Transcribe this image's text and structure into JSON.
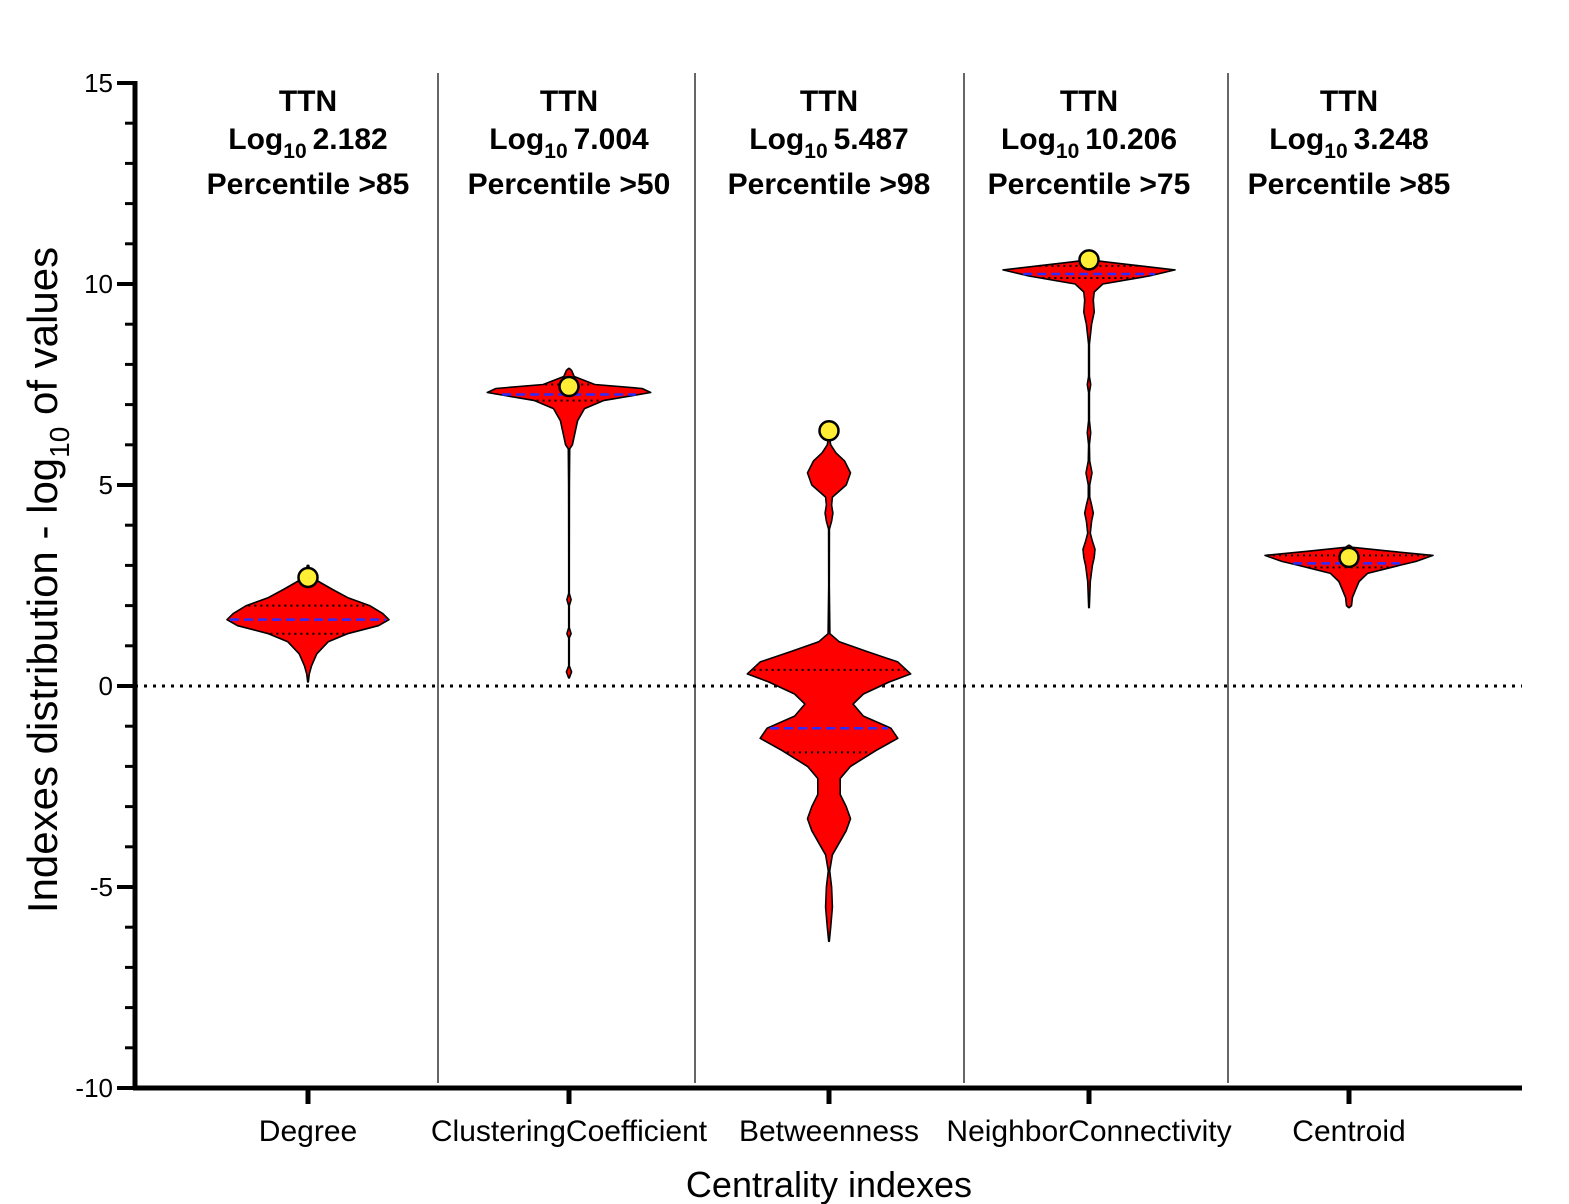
{
  "chart_data": {
    "type": "violin",
    "title": "",
    "xlabel": "Centrality indexes",
    "ylabel": {
      "prefix": "Indexes distribution - log",
      "subscript": "10",
      "suffix": " of values"
    },
    "ylim": [
      -10,
      15
    ],
    "yticks": [
      15,
      10,
      5,
      0,
      -5,
      -10
    ],
    "ytick_labels": [
      "15",
      "10",
      "5",
      "0",
      "-5",
      "-10"
    ],
    "reference_line": 0,
    "colors": {
      "violin": "#ff0000",
      "median": "#2c2cff",
      "highlight": "#ffee33",
      "outline": "#000000"
    },
    "categories": [
      "Degree",
      "ClusteringCoefficient",
      "Betweenness",
      "NeighborConnectivity",
      "Centroid"
    ],
    "series": [
      {
        "name": "Degree",
        "gene": "TTN",
        "log_prefix": "Log",
        "log_sub": "10",
        "log_value": "2.182",
        "percentile_label": "Percentile >85",
        "highlight": 2.7,
        "median": 1.65,
        "quartiles": [
          1.3,
          2.0
        ],
        "profile": [
          [
            0.1,
            0.003
          ],
          [
            0.3,
            0.015
          ],
          [
            0.5,
            0.04
          ],
          [
            0.8,
            0.1
          ],
          [
            1.1,
            0.23
          ],
          [
            1.3,
            0.45
          ],
          [
            1.5,
            0.8
          ],
          [
            1.65,
            0.92
          ],
          [
            1.8,
            0.85
          ],
          [
            2.0,
            0.7
          ],
          [
            2.2,
            0.45
          ],
          [
            2.4,
            0.28
          ],
          [
            2.6,
            0.12
          ],
          [
            2.8,
            0.03
          ],
          [
            3.0,
            0.008
          ]
        ]
      },
      {
        "name": "ClusteringCoefficient",
        "gene": "TTN",
        "log_prefix": "Log",
        "log_sub": "10",
        "log_value": "7.004",
        "percentile_label": "Percentile >50",
        "highlight": 7.45,
        "median": 7.25,
        "quartiles": [
          7.1,
          7.5
        ],
        "profile": [
          [
            0.2,
            0.004
          ],
          [
            0.35,
            0.03
          ],
          [
            0.5,
            0.004
          ],
          [
            1.2,
            0.004
          ],
          [
            1.3,
            0.025
          ],
          [
            1.45,
            0.004
          ],
          [
            2.0,
            0.004
          ],
          [
            2.15,
            0.025
          ],
          [
            2.3,
            0.004
          ],
          [
            3.2,
            0.004
          ],
          [
            5.0,
            0.005
          ],
          [
            5.9,
            0.008
          ],
          [
            6.0,
            0.04
          ],
          [
            6.3,
            0.07
          ],
          [
            6.6,
            0.1
          ],
          [
            6.9,
            0.18
          ],
          [
            7.1,
            0.4
          ],
          [
            7.3,
            0.95
          ],
          [
            7.4,
            0.85
          ],
          [
            7.5,
            0.3
          ],
          [
            7.7,
            0.06
          ],
          [
            7.85,
            0.03
          ],
          [
            7.9,
            0.003
          ]
        ]
      },
      {
        "name": "Betweenness",
        "gene": "TTN",
        "log_prefix": "Log",
        "log_sub": "10",
        "log_value": "5.487",
        "percentile_label": "Percentile >98",
        "highlight": 6.35,
        "median": -1.05,
        "quartiles": [
          -1.65,
          0.4
        ],
        "profile": [
          [
            -6.35,
            0.004
          ],
          [
            -6.0,
            0.02
          ],
          [
            -5.5,
            0.04
          ],
          [
            -5.0,
            0.03
          ],
          [
            -4.6,
            0.008
          ],
          [
            -4.2,
            0.04
          ],
          [
            -3.9,
            0.12
          ],
          [
            -3.6,
            0.2
          ],
          [
            -3.3,
            0.25
          ],
          [
            -3.0,
            0.2
          ],
          [
            -2.7,
            0.13
          ],
          [
            -2.3,
            0.13
          ],
          [
            -2.0,
            0.25
          ],
          [
            -1.6,
            0.55
          ],
          [
            -1.3,
            0.8
          ],
          [
            -1.05,
            0.72
          ],
          [
            -0.75,
            0.4
          ],
          [
            -0.45,
            0.28
          ],
          [
            -0.2,
            0.4
          ],
          [
            0.1,
            0.7
          ],
          [
            0.3,
            0.95
          ],
          [
            0.6,
            0.8
          ],
          [
            0.85,
            0.45
          ],
          [
            1.1,
            0.12
          ],
          [
            1.3,
            0.01
          ],
          [
            2.5,
            0.004
          ],
          [
            3.9,
            0.005
          ],
          [
            4.1,
            0.03
          ],
          [
            4.3,
            0.045
          ],
          [
            4.5,
            0.03
          ],
          [
            4.7,
            0.04
          ],
          [
            5.0,
            0.2
          ],
          [
            5.3,
            0.25
          ],
          [
            5.6,
            0.18
          ],
          [
            5.8,
            0.08
          ],
          [
            6.0,
            0.02
          ],
          [
            6.2,
            0.003
          ]
        ]
      },
      {
        "name": "NeighborConnectivity",
        "gene": "TTN",
        "log_prefix": "Log",
        "log_sub": "10",
        "log_value": "10.206",
        "percentile_label": "Percentile >75",
        "highlight": 10.6,
        "median": 10.25,
        "quartiles": [
          10.15,
          10.45
        ],
        "profile": [
          [
            1.95,
            0.004
          ],
          [
            2.6,
            0.015
          ],
          [
            3.0,
            0.04
          ],
          [
            3.2,
            0.06
          ],
          [
            3.4,
            0.07
          ],
          [
            3.6,
            0.04
          ],
          [
            3.8,
            0.015
          ],
          [
            4.1,
            0.03
          ],
          [
            4.3,
            0.05
          ],
          [
            4.5,
            0.03
          ],
          [
            4.7,
            0.008
          ],
          [
            5.0,
            0.008
          ],
          [
            5.3,
            0.035
          ],
          [
            5.6,
            0.008
          ],
          [
            6.0,
            0.005
          ],
          [
            6.3,
            0.02
          ],
          [
            6.6,
            0.005
          ],
          [
            7.3,
            0.005
          ],
          [
            7.5,
            0.02
          ],
          [
            7.7,
            0.005
          ],
          [
            8.5,
            0.005
          ],
          [
            9.0,
            0.03
          ],
          [
            9.3,
            0.06
          ],
          [
            9.6,
            0.05
          ],
          [
            9.8,
            0.06
          ],
          [
            10.0,
            0.16
          ],
          [
            10.2,
            0.7
          ],
          [
            10.35,
            1.0
          ],
          [
            10.45,
            0.6
          ],
          [
            10.55,
            0.2
          ],
          [
            10.6,
            0.02
          ]
        ]
      },
      {
        "name": "Centroid",
        "gene": "TTN",
        "log_prefix": "Log",
        "log_sub": "10",
        "log_value": "3.248",
        "percentile_label": "Percentile >85",
        "highlight": 3.2,
        "median": 3.05,
        "quartiles": [
          2.95,
          3.25
        ],
        "profile": [
          [
            1.95,
            0.004
          ],
          [
            2.0,
            0.03
          ],
          [
            2.2,
            0.04
          ],
          [
            2.4,
            0.08
          ],
          [
            2.6,
            0.12
          ],
          [
            2.8,
            0.22
          ],
          [
            3.0,
            0.6
          ],
          [
            3.1,
            0.8
          ],
          [
            3.25,
            1.0
          ],
          [
            3.35,
            0.5
          ],
          [
            3.45,
            0.04
          ],
          [
            3.5,
            0.005
          ]
        ]
      }
    ]
  }
}
